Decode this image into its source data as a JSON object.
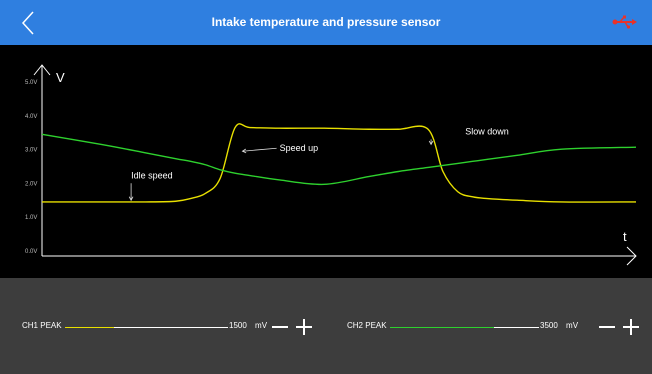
{
  "header": {
    "title": "Intake temperature and pressure sensor",
    "back_icon": "chevron-left-icon",
    "status_icon": "usb-icon",
    "accent": "#2f7fe0",
    "status_color": "#e8332a"
  },
  "chart_data": {
    "type": "line",
    "title": "",
    "xlabel": "t",
    "ylabel": "V",
    "ylim": [
      0,
      5
    ],
    "yticks": [
      "0.0V",
      "1.0V",
      "2.0V",
      "3.0V",
      "4.0V",
      "5.0V"
    ],
    "x": [
      0,
      4,
      7,
      9,
      10,
      11,
      12,
      13,
      14,
      16,
      19,
      22,
      24,
      26,
      27,
      28,
      29,
      30,
      32,
      35,
      40
    ],
    "series": [
      {
        "name": "CH1",
        "color": "#e8e000",
        "values": [
          1.6,
          1.6,
          1.6,
          1.62,
          1.7,
          1.85,
          2.3,
          3.8,
          3.8,
          3.78,
          3.78,
          3.75,
          3.75,
          3.75,
          2.5,
          1.9,
          1.75,
          1.7,
          1.65,
          1.6,
          1.6
        ]
      },
      {
        "name": "CH2",
        "color": "#2ed12e",
        "values": [
          3.6,
          3.3,
          3.05,
          2.88,
          2.8,
          2.7,
          2.55,
          2.45,
          2.38,
          2.25,
          2.12,
          2.35,
          2.5,
          2.62,
          2.68,
          2.74,
          2.8,
          2.86,
          2.98,
          3.16,
          3.22
        ]
      }
    ],
    "annotations": [
      {
        "text": "Idle speed",
        "x": 6,
        "y": 2.3,
        "arrow_to": [
          6,
          1.65
        ]
      },
      {
        "text": "Speed up",
        "x": 16,
        "y": 3.1,
        "arrow_to": [
          13.5,
          3.1
        ]
      },
      {
        "text": "Slow down",
        "x": 28.5,
        "y": 3.6,
        "arrow_to": [
          26.2,
          3.3
        ]
      }
    ]
  },
  "controls": {
    "ch1": {
      "label": "CH1 PEAK",
      "value": "1500",
      "unit": "mV",
      "level": 0.3,
      "color": "#e8e000"
    },
    "ch2": {
      "label": "CH2 PEAK",
      "value": "3500",
      "unit": "mV",
      "level": 0.7,
      "color": "#2ed12e"
    }
  }
}
